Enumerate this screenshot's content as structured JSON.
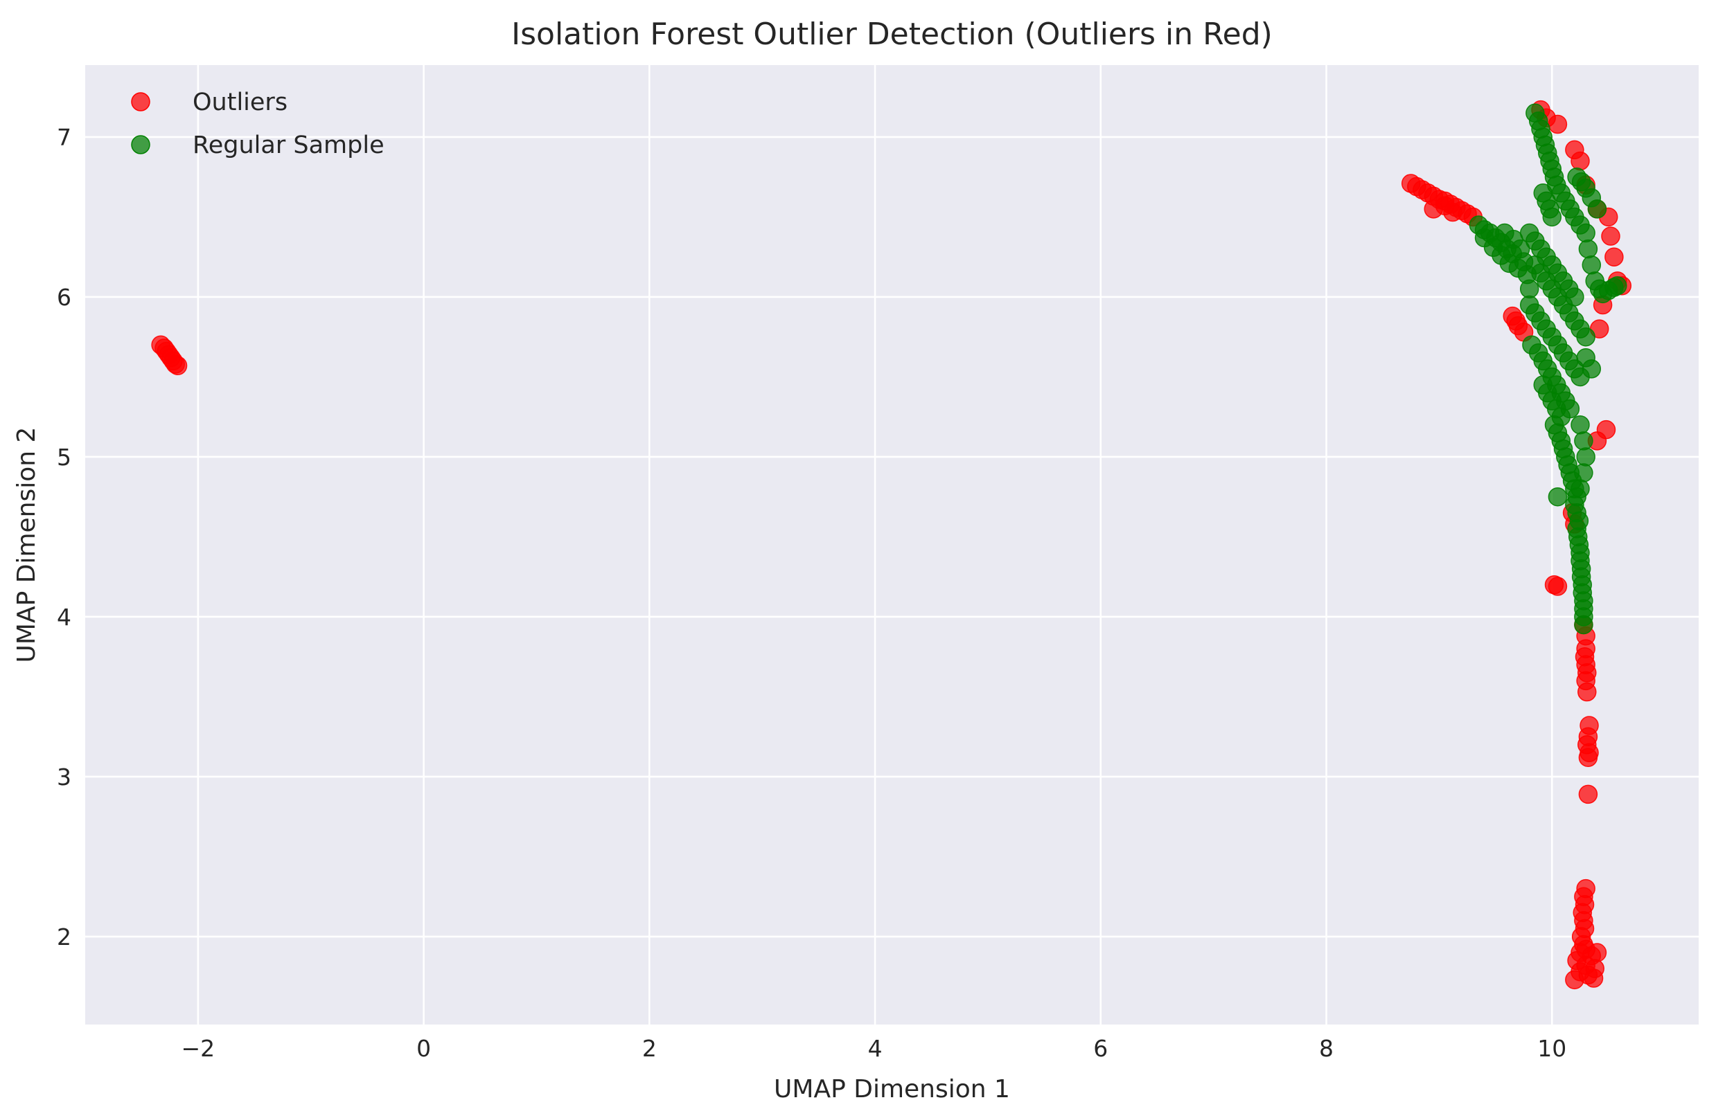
{
  "chart_data": {
    "type": "scatter",
    "title": "Isolation Forest Outlier Detection (Outliers in Red)",
    "xlabel": "UMAP Dimension 1",
    "ylabel": "UMAP Dimension 2",
    "xlim": [
      -3.0,
      11.3
    ],
    "ylim": [
      1.45,
      7.45
    ],
    "xticks": [
      -2,
      0,
      2,
      4,
      6,
      8,
      10
    ],
    "yticks": [
      2,
      3,
      4,
      5,
      6,
      7
    ],
    "grid": true,
    "legend_position": "top-left",
    "series": [
      {
        "name": "Outliers",
        "color": "#ff0000",
        "points": [
          [
            -2.33,
            5.7
          ],
          [
            -2.3,
            5.68
          ],
          [
            -2.28,
            5.66
          ],
          [
            -2.26,
            5.64
          ],
          [
            -2.24,
            5.62
          ],
          [
            -2.22,
            5.6
          ],
          [
            -2.2,
            5.58
          ],
          [
            -2.18,
            5.57
          ],
          [
            8.75,
            6.71
          ],
          [
            8.8,
            6.69
          ],
          [
            8.85,
            6.67
          ],
          [
            8.9,
            6.65
          ],
          [
            8.95,
            6.63
          ],
          [
            9.0,
            6.61
          ],
          [
            9.05,
            6.6
          ],
          [
            9.1,
            6.58
          ],
          [
            9.15,
            6.56
          ],
          [
            9.2,
            6.54
          ],
          [
            9.25,
            6.52
          ],
          [
            9.3,
            6.5
          ],
          [
            8.95,
            6.55
          ],
          [
            9.05,
            6.57
          ],
          [
            9.12,
            6.53
          ],
          [
            9.65,
            5.88
          ],
          [
            9.7,
            5.82
          ],
          [
            9.75,
            5.78
          ],
          [
            9.68,
            5.85
          ],
          [
            9.9,
            7.17
          ],
          [
            9.95,
            7.12
          ],
          [
            10.05,
            7.08
          ],
          [
            10.2,
            6.92
          ],
          [
            10.25,
            6.85
          ],
          [
            10.3,
            6.7
          ],
          [
            10.4,
            6.55
          ],
          [
            10.5,
            6.5
          ],
          [
            10.52,
            6.38
          ],
          [
            10.55,
            6.25
          ],
          [
            10.58,
            6.1
          ],
          [
            10.62,
            6.07
          ],
          [
            10.45,
            5.95
          ],
          [
            10.42,
            5.8
          ],
          [
            10.48,
            5.17
          ],
          [
            10.4,
            5.1
          ],
          [
            10.18,
            4.65
          ],
          [
            10.2,
            4.58
          ],
          [
            10.02,
            4.2
          ],
          [
            10.05,
            4.19
          ],
          [
            10.28,
            3.95
          ],
          [
            10.3,
            3.88
          ],
          [
            10.3,
            3.8
          ],
          [
            10.29,
            3.75
          ],
          [
            10.3,
            3.7
          ],
          [
            10.31,
            3.65
          ],
          [
            10.3,
            3.6
          ],
          [
            10.31,
            3.53
          ],
          [
            10.33,
            3.32
          ],
          [
            10.32,
            3.25
          ],
          [
            10.31,
            3.2
          ],
          [
            10.33,
            3.15
          ],
          [
            10.32,
            3.12
          ],
          [
            10.32,
            2.89
          ],
          [
            10.3,
            2.3
          ],
          [
            10.28,
            2.25
          ],
          [
            10.29,
            2.2
          ],
          [
            10.27,
            2.15
          ],
          [
            10.28,
            2.1
          ],
          [
            10.29,
            2.05
          ],
          [
            10.26,
            2.0
          ],
          [
            10.28,
            1.95
          ],
          [
            10.3,
            1.92
          ],
          [
            10.25,
            1.9
          ],
          [
            10.35,
            1.88
          ],
          [
            10.4,
            1.9
          ],
          [
            10.22,
            1.85
          ],
          [
            10.3,
            1.82
          ],
          [
            10.38,
            1.8
          ],
          [
            10.25,
            1.78
          ],
          [
            10.2,
            1.73
          ],
          [
            10.37,
            1.74
          ],
          [
            10.32,
            1.76
          ]
        ]
      },
      {
        "name": "Regular Sample",
        "color": "#008000",
        "points": [
          [
            9.35,
            6.45
          ],
          [
            9.4,
            6.42
          ],
          [
            9.45,
            6.4
          ],
          [
            9.5,
            6.37
          ],
          [
            9.55,
            6.34
          ],
          [
            9.6,
            6.3
          ],
          [
            9.65,
            6.27
          ],
          [
            9.4,
            6.37
          ],
          [
            9.48,
            6.31
          ],
          [
            9.55,
            6.26
          ],
          [
            9.62,
            6.21
          ],
          [
            9.7,
            6.18
          ],
          [
            9.58,
            6.4
          ],
          [
            9.66,
            6.36
          ],
          [
            9.72,
            6.3
          ],
          [
            9.75,
            6.22
          ],
          [
            9.78,
            6.14
          ],
          [
            9.8,
            6.05
          ],
          [
            9.85,
            7.15
          ],
          [
            9.88,
            7.1
          ],
          [
            9.9,
            7.05
          ],
          [
            9.92,
            7.0
          ],
          [
            9.94,
            6.95
          ],
          [
            9.96,
            6.9
          ],
          [
            9.98,
            6.85
          ],
          [
            10.0,
            6.8
          ],
          [
            10.02,
            6.75
          ],
          [
            10.04,
            6.7
          ],
          [
            9.92,
            6.65
          ],
          [
            9.95,
            6.6
          ],
          [
            9.98,
            6.55
          ],
          [
            10.0,
            6.5
          ],
          [
            10.08,
            6.65
          ],
          [
            10.12,
            6.6
          ],
          [
            10.16,
            6.55
          ],
          [
            10.2,
            6.5
          ],
          [
            10.25,
            6.45
          ],
          [
            10.3,
            6.4
          ],
          [
            10.32,
            6.3
          ],
          [
            10.35,
            6.2
          ],
          [
            10.38,
            6.1
          ],
          [
            10.42,
            6.05
          ],
          [
            10.45,
            6.02
          ],
          [
            10.5,
            6.04
          ],
          [
            10.55,
            6.06
          ],
          [
            10.58,
            6.07
          ],
          [
            10.22,
            6.75
          ],
          [
            10.26,
            6.72
          ],
          [
            10.3,
            6.68
          ],
          [
            10.35,
            6.62
          ],
          [
            10.4,
            6.55
          ],
          [
            9.8,
            6.4
          ],
          [
            9.85,
            6.35
          ],
          [
            9.9,
            6.3
          ],
          [
            9.95,
            6.25
          ],
          [
            10.0,
            6.2
          ],
          [
            10.05,
            6.15
          ],
          [
            10.1,
            6.1
          ],
          [
            10.15,
            6.05
          ],
          [
            10.2,
            6.0
          ],
          [
            9.85,
            6.2
          ],
          [
            9.9,
            6.15
          ],
          [
            9.95,
            6.1
          ],
          [
            10.0,
            6.05
          ],
          [
            10.05,
            6.0
          ],
          [
            10.1,
            5.95
          ],
          [
            10.15,
            5.9
          ],
          [
            10.2,
            5.85
          ],
          [
            10.25,
            5.8
          ],
          [
            10.3,
            5.75
          ],
          [
            9.8,
            5.95
          ],
          [
            9.85,
            5.9
          ],
          [
            9.9,
            5.85
          ],
          [
            9.95,
            5.8
          ],
          [
            10.0,
            5.75
          ],
          [
            10.05,
            5.7
          ],
          [
            10.1,
            5.65
          ],
          [
            10.15,
            5.6
          ],
          [
            10.2,
            5.55
          ],
          [
            10.25,
            5.5
          ],
          [
            9.82,
            5.7
          ],
          [
            9.88,
            5.65
          ],
          [
            9.92,
            5.6
          ],
          [
            9.96,
            5.55
          ],
          [
            10.0,
            5.5
          ],
          [
            10.04,
            5.45
          ],
          [
            10.08,
            5.4
          ],
          [
            10.12,
            5.35
          ],
          [
            10.16,
            5.3
          ],
          [
            10.3,
            5.62
          ],
          [
            10.35,
            5.55
          ],
          [
            9.92,
            5.45
          ],
          [
            9.96,
            5.4
          ],
          [
            10.0,
            5.35
          ],
          [
            10.04,
            5.3
          ],
          [
            10.08,
            5.25
          ],
          [
            10.02,
            5.2
          ],
          [
            10.05,
            5.15
          ],
          [
            10.08,
            5.1
          ],
          [
            10.1,
            5.05
          ],
          [
            10.12,
            5.0
          ],
          [
            10.14,
            4.95
          ],
          [
            10.16,
            4.9
          ],
          [
            10.18,
            4.85
          ],
          [
            10.2,
            4.8
          ],
          [
            10.05,
            4.75
          ],
          [
            10.25,
            5.2
          ],
          [
            10.28,
            5.1
          ],
          [
            10.3,
            5.0
          ],
          [
            10.28,
            4.9
          ],
          [
            10.25,
            4.8
          ],
          [
            10.22,
            4.75
          ],
          [
            10.2,
            4.7
          ],
          [
            10.22,
            4.65
          ],
          [
            10.24,
            4.6
          ],
          [
            10.22,
            4.55
          ],
          [
            10.23,
            4.5
          ],
          [
            10.24,
            4.45
          ],
          [
            10.25,
            4.4
          ],
          [
            10.25,
            4.35
          ],
          [
            10.26,
            4.3
          ],
          [
            10.26,
            4.25
          ],
          [
            10.27,
            4.2
          ],
          [
            10.27,
            4.15
          ],
          [
            10.28,
            4.1
          ],
          [
            10.28,
            4.05
          ],
          [
            10.28,
            4.0
          ],
          [
            10.28,
            3.95
          ]
        ]
      }
    ]
  }
}
